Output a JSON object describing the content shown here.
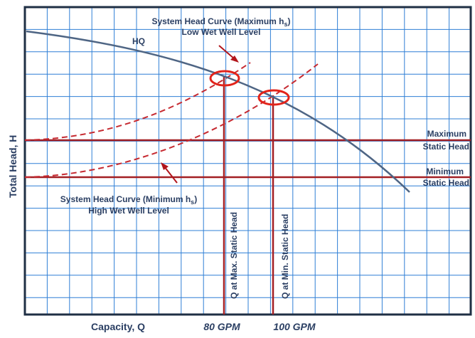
{
  "title_top": {
    "line1": "System Head Curve (Maximum h",
    "line1_sub": "s",
    "line1_end": ")",
    "line2": "Low Wet Well Level"
  },
  "title_bottom": {
    "line1": "System Head Curve (Minimum h",
    "line1_sub": "s",
    "line1_end": ")",
    "line2": "High Wet Well Level"
  },
  "hq_label": "HQ",
  "y_axis_label": "Total Head, H",
  "x_axis_label": "Capacity, Q",
  "x_marks": {
    "q80": "80 GPM",
    "q100": "100 GPM"
  },
  "static_labels": {
    "max_line1": "Maximum",
    "max_line2": "Static Head",
    "min_line1": "Minimum",
    "min_line2": "Static Head"
  },
  "vertical_labels": {
    "q_max": "Q at Max. Static Head",
    "q_min": "Q at Min. Static Head"
  },
  "colors": {
    "grid": "#2f7fd6",
    "frame": "#1f2f44",
    "pump_curve": "#4e6584",
    "system_lines": "#a31f24",
    "operating_circles": "#e2231a",
    "text_navy": "#2b3f63"
  }
}
